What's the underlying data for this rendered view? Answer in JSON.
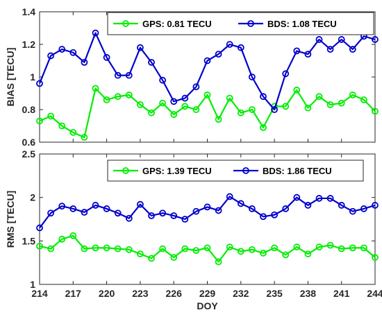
{
  "colors": {
    "gps": "#00ee00",
    "bds": "#0000cc",
    "axis": "#262626"
  },
  "chart_data": [
    {
      "type": "line",
      "ylabel": "BIAS [TECU]",
      "xlabel": "",
      "xlim": [
        214,
        244
      ],
      "ylim": [
        0.6,
        1.4
      ],
      "yticks": [
        "0.6",
        "0.8",
        "1",
        "1.2",
        "1.4"
      ],
      "xticks": [],
      "legend_position": "top-right",
      "x": [
        214,
        215,
        216,
        217,
        218,
        219,
        220,
        221,
        222,
        223,
        224,
        225,
        226,
        227,
        228,
        229,
        230,
        231,
        232,
        233,
        234,
        235,
        236,
        237,
        238,
        239,
        240,
        241,
        242,
        243,
        244
      ],
      "series": [
        {
          "name": "GPS: 0.81 TECU",
          "color_key": "gps",
          "values": [
            0.73,
            0.76,
            0.7,
            0.66,
            0.63,
            0.93,
            0.86,
            0.88,
            0.89,
            0.83,
            0.78,
            0.84,
            0.77,
            0.82,
            0.8,
            0.89,
            0.74,
            0.87,
            0.78,
            0.8,
            0.69,
            0.82,
            0.82,
            0.92,
            0.81,
            0.88,
            0.83,
            0.84,
            0.89,
            0.86,
            0.79
          ]
        },
        {
          "name": "BDS: 1.08 TECU",
          "color_key": "bds",
          "values": [
            0.96,
            1.13,
            1.17,
            1.15,
            1.09,
            1.27,
            1.12,
            1.01,
            1.01,
            1.18,
            1.09,
            0.98,
            0.85,
            0.87,
            0.94,
            1.1,
            1.14,
            1.2,
            1.18,
            1.0,
            0.88,
            0.8,
            1.02,
            1.16,
            1.14,
            1.23,
            1.17,
            1.23,
            1.17,
            1.25,
            1.23
          ]
        }
      ]
    },
    {
      "type": "line",
      "ylabel": "RMS [TECU]",
      "xlabel": "DOY",
      "xlim": [
        214,
        244
      ],
      "ylim": [
        1,
        2.5
      ],
      "yticks": [
        "1",
        "1.5",
        "2",
        "2.5"
      ],
      "xticks": [
        "214",
        "217",
        "220",
        "223",
        "226",
        "229",
        "232",
        "235",
        "238",
        "241",
        "244"
      ],
      "legend_position": "top-right",
      "x": [
        214,
        215,
        216,
        217,
        218,
        219,
        220,
        221,
        222,
        223,
        224,
        225,
        226,
        227,
        228,
        229,
        230,
        231,
        232,
        233,
        234,
        235,
        236,
        237,
        238,
        239,
        240,
        241,
        242,
        243,
        244
      ],
      "series": [
        {
          "name": "GPS: 1.39 TECU",
          "color_key": "gps",
          "values": [
            1.44,
            1.41,
            1.52,
            1.56,
            1.41,
            1.42,
            1.42,
            1.41,
            1.4,
            1.35,
            1.3,
            1.41,
            1.31,
            1.41,
            1.39,
            1.42,
            1.26,
            1.43,
            1.38,
            1.4,
            1.36,
            1.42,
            1.34,
            1.43,
            1.35,
            1.43,
            1.45,
            1.41,
            1.42,
            1.42,
            1.31
          ]
        },
        {
          "name": "BDS: 1.86 TECU",
          "color_key": "bds",
          "values": [
            1.65,
            1.82,
            1.9,
            1.87,
            1.83,
            1.91,
            1.87,
            1.82,
            1.76,
            1.92,
            1.79,
            1.82,
            1.79,
            1.75,
            1.84,
            1.89,
            1.85,
            2.01,
            1.93,
            1.87,
            1.78,
            1.8,
            1.87,
            2.0,
            1.91,
            1.99,
            1.99,
            1.91,
            1.84,
            1.87,
            1.91
          ]
        }
      ]
    }
  ]
}
